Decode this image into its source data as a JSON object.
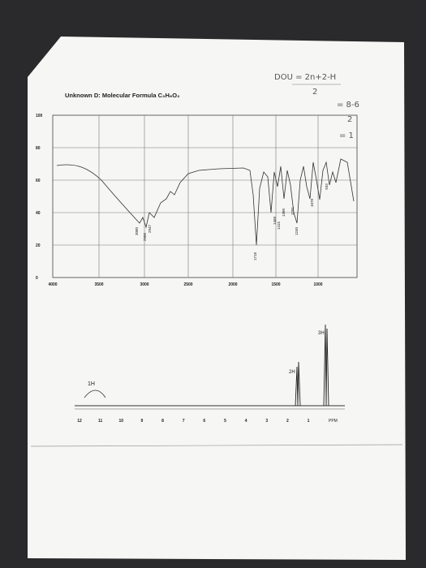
{
  "header": {
    "title": "Unknown D: Molecular Formula C₃H₆O₂"
  },
  "notes": {
    "line1": "DOU = 2n+2-H",
    "line1_den": "2",
    "line2": "= 8-6",
    "line2_den": "2",
    "line3": "= 1"
  },
  "ir": {
    "y_ticks": [
      "100",
      "80",
      "60",
      "40",
      "20",
      "0"
    ],
    "x_ticks": [
      "4000",
      "3500",
      "3000",
      "2500",
      "2000",
      "1500",
      "1000"
    ],
    "peaks": [
      "3080",
      "2986",
      "2947",
      "1718",
      "1468",
      "1415",
      "1380",
      "1291",
      "1240",
      "1078",
      "933"
    ]
  },
  "nmr": {
    "integrals": [
      "1H",
      "2H",
      "3H"
    ],
    "x_ticks": [
      "12",
      "11",
      "10",
      "9",
      "8",
      "7",
      "6",
      "5",
      "4",
      "3",
      "2",
      "1"
    ],
    "unit": "PPM"
  }
}
